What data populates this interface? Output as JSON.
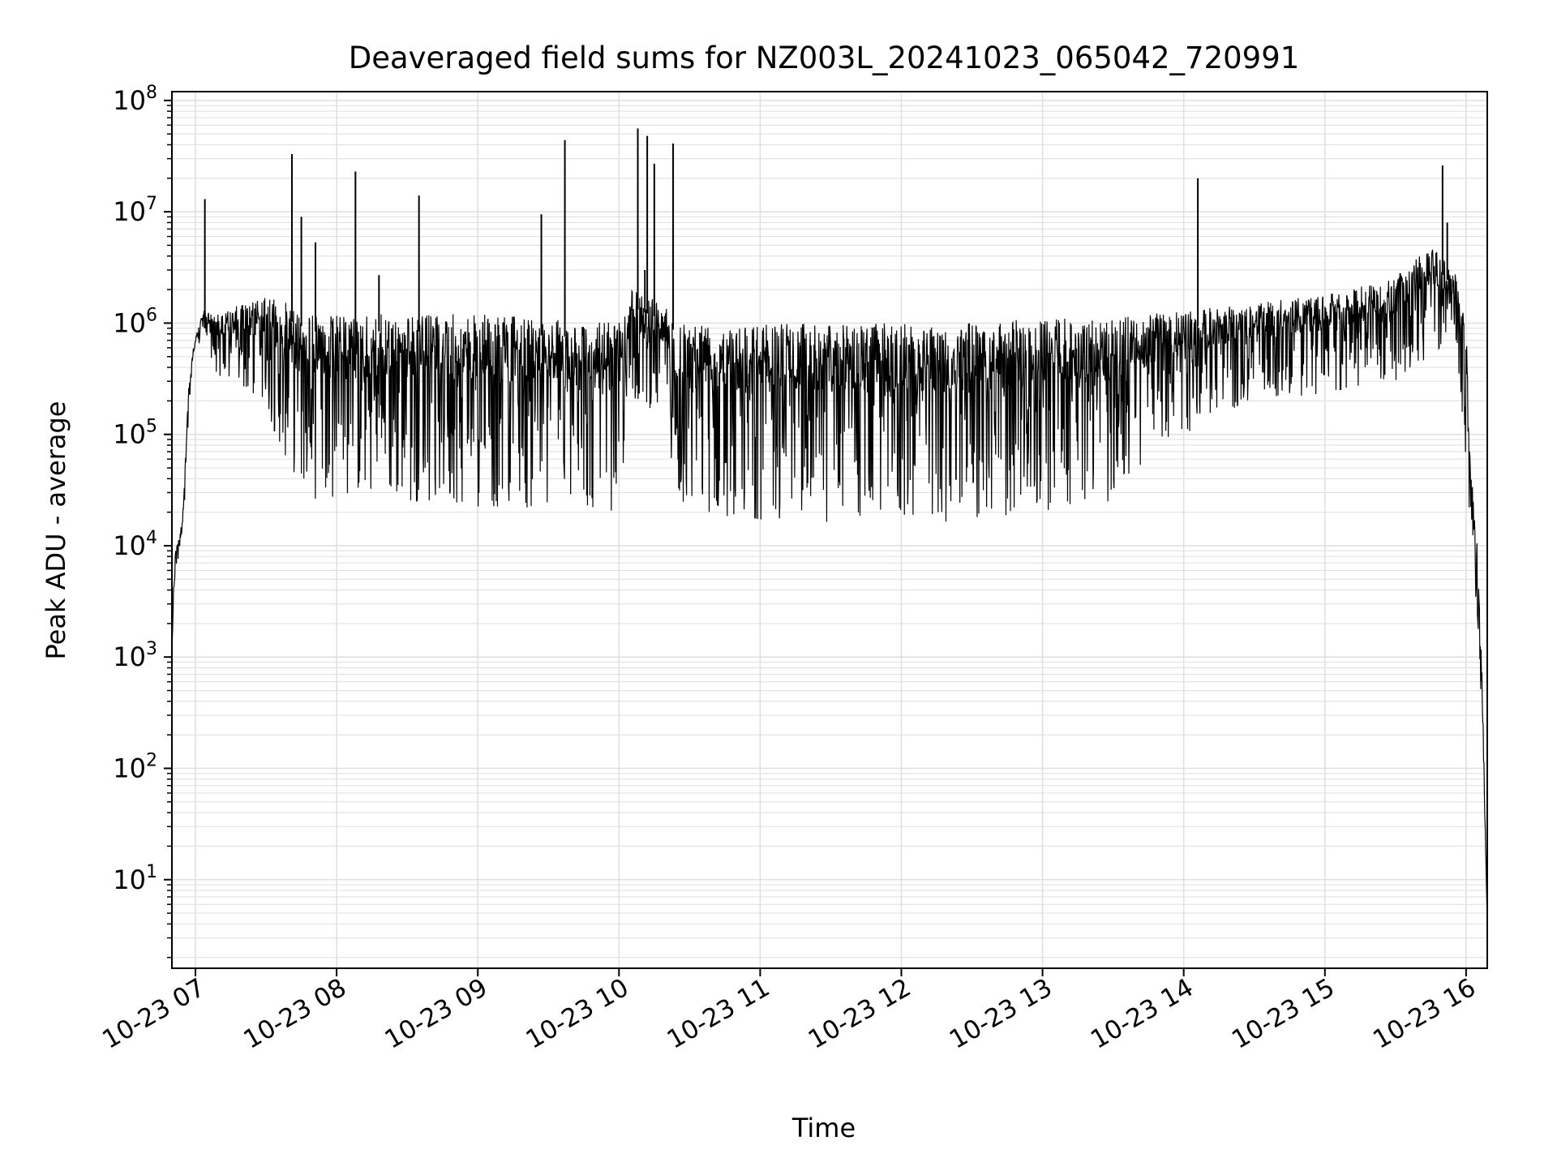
{
  "chart_data": {
    "type": "line",
    "title": "Deaveraged field sums for NZ003L_20241023_065042_720991",
    "xlabel": "Time",
    "ylabel": "Peak ADU - average",
    "yscale": "log",
    "ylim": [
      1.6,
      120000000
    ],
    "xlim": [
      "2024-10-23 06:50",
      "2024-10-23 16:09"
    ],
    "grid": true,
    "line_color": "#000000",
    "grid_color": "#e0e0e0",
    "x_ticks": [
      {
        "value": "2024-10-23 07:00",
        "label": "10-23 07"
      },
      {
        "value": "2024-10-23 08:00",
        "label": "10-23 08"
      },
      {
        "value": "2024-10-23 09:00",
        "label": "10-23 09"
      },
      {
        "value": "2024-10-23 10:00",
        "label": "10-23 10"
      },
      {
        "value": "2024-10-23 11:00",
        "label": "10-23 11"
      },
      {
        "value": "2024-10-23 12:00",
        "label": "10-23 12"
      },
      {
        "value": "2024-10-23 13:00",
        "label": "10-23 13"
      },
      {
        "value": "2024-10-23 14:00",
        "label": "10-23 14"
      },
      {
        "value": "2024-10-23 15:00",
        "label": "10-23 15"
      },
      {
        "value": "2024-10-23 16:00",
        "label": "10-23 16"
      }
    ],
    "y_ticks": [
      {
        "value": 10,
        "base": "10",
        "exp": "1"
      },
      {
        "value": 100,
        "base": "10",
        "exp": "2"
      },
      {
        "value": 1000,
        "base": "10",
        "exp": "3"
      },
      {
        "value": 10000,
        "base": "10",
        "exp": "4"
      },
      {
        "value": 100000,
        "base": "10",
        "exp": "5"
      },
      {
        "value": 1000000,
        "base": "10",
        "exp": "6"
      },
      {
        "value": 10000000,
        "base": "10",
        "exp": "7"
      },
      {
        "value": 100000000,
        "base": "10",
        "exp": "8"
      }
    ],
    "series": [
      {
        "envelope": [
          {
            "x": "2024-10-23 06:50",
            "top": 1000,
            "bottom": 1000
          },
          {
            "x": "2024-10-23 06:51",
            "top": 9000,
            "bottom": 4000
          },
          {
            "x": "2024-10-23 06:53",
            "top": 12000,
            "bottom": 8000
          },
          {
            "x": "2024-10-23 06:55",
            "top": 25000,
            "bottom": 18000
          },
          {
            "x": "2024-10-23 06:57",
            "top": 300000,
            "bottom": 100000
          },
          {
            "x": "2024-10-23 06:59",
            "top": 600000,
            "bottom": 400000
          },
          {
            "x": "2024-10-23 07:03",
            "top": 1300000,
            "bottom": 800000
          },
          {
            "x": "2024-10-23 07:10",
            "top": 1200000,
            "bottom": 300000
          },
          {
            "x": "2024-10-23 07:20",
            "top": 1500000,
            "bottom": 250000
          },
          {
            "x": "2024-10-23 07:30",
            "top": 1700000,
            "bottom": 150000
          },
          {
            "x": "2024-10-23 07:40",
            "top": 1500000,
            "bottom": 50000
          },
          {
            "x": "2024-10-23 07:50",
            "top": 1200000,
            "bottom": 25000
          },
          {
            "x": "2024-10-23 08:00",
            "top": 1200000,
            "bottom": 28000
          },
          {
            "x": "2024-10-23 08:30",
            "top": 1200000,
            "bottom": 25000
          },
          {
            "x": "2024-10-23 09:00",
            "top": 1200000,
            "bottom": 22000
          },
          {
            "x": "2024-10-23 09:30",
            "top": 1100000,
            "bottom": 20000
          },
          {
            "x": "2024-10-23 10:00",
            "top": 1000000,
            "bottom": 20000
          },
          {
            "x": "2024-10-23 10:05",
            "top": 2000000,
            "bottom": 200000
          },
          {
            "x": "2024-10-23 10:20",
            "top": 1500000,
            "bottom": 150000
          },
          {
            "x": "2024-10-23 10:25",
            "top": 1100000,
            "bottom": 20000
          },
          {
            "x": "2024-10-23 11:00",
            "top": 1000000,
            "bottom": 17000
          },
          {
            "x": "2024-10-23 11:30",
            "top": 1000000,
            "bottom": 16000
          },
          {
            "x": "2024-10-23 12:00",
            "top": 1000000,
            "bottom": 17000
          },
          {
            "x": "2024-10-23 12:30",
            "top": 1000000,
            "bottom": 16000
          },
          {
            "x": "2024-10-23 13:00",
            "top": 1100000,
            "bottom": 20000
          },
          {
            "x": "2024-10-23 13:30",
            "top": 1100000,
            "bottom": 25000
          },
          {
            "x": "2024-10-23 13:45",
            "top": 1200000,
            "bottom": 60000
          },
          {
            "x": "2024-10-23 14:00",
            "top": 1300000,
            "bottom": 100000
          },
          {
            "x": "2024-10-23 14:30",
            "top": 1500000,
            "bottom": 200000
          },
          {
            "x": "2024-10-23 15:00",
            "top": 1800000,
            "bottom": 200000
          },
          {
            "x": "2024-10-23 15:30",
            "top": 2500000,
            "bottom": 300000
          },
          {
            "x": "2024-10-23 15:45",
            "top": 5000000,
            "bottom": 500000
          },
          {
            "x": "2024-10-23 15:55",
            "top": 3000000,
            "bottom": 700000
          },
          {
            "x": "2024-10-23 16:00",
            "top": 1000000,
            "bottom": 60000
          },
          {
            "x": "2024-10-23 16:02",
            "top": 50000,
            "bottom": 10000
          },
          {
            "x": "2024-10-23 16:05",
            "top": 10000,
            "bottom": 2000
          },
          {
            "x": "2024-10-23 16:07",
            "top": 500,
            "bottom": 100
          },
          {
            "x": "2024-10-23 16:09",
            "top": 4,
            "bottom": 4
          }
        ],
        "spikes": [
          {
            "x": "2024-10-23 07:04",
            "y": 13000000
          },
          {
            "x": "2024-10-23 07:41",
            "y": 33000000
          },
          {
            "x": "2024-10-23 07:45",
            "y": 9000000
          },
          {
            "x": "2024-10-23 07:51",
            "y": 5300000
          },
          {
            "x": "2024-10-23 08:08",
            "y": 23000000
          },
          {
            "x": "2024-10-23 08:18",
            "y": 2700000
          },
          {
            "x": "2024-10-23 08:35",
            "y": 14000000
          },
          {
            "x": "2024-10-23 09:27",
            "y": 9500000
          },
          {
            "x": "2024-10-23 09:37",
            "y": 44000000
          },
          {
            "x": "2024-10-23 10:08",
            "y": 56000000
          },
          {
            "x": "2024-10-23 10:11",
            "y": 3000000
          },
          {
            "x": "2024-10-23 10:12",
            "y": 48000000
          },
          {
            "x": "2024-10-23 10:15",
            "y": 27000000
          },
          {
            "x": "2024-10-23 10:23",
            "y": 41000000
          },
          {
            "x": "2024-10-23 14:06",
            "y": 20000000
          },
          {
            "x": "2024-10-23 15:32",
            "y": 2800000
          },
          {
            "x": "2024-10-23 15:50",
            "y": 26000000
          },
          {
            "x": "2024-10-23 15:52",
            "y": 8000000
          }
        ]
      }
    ]
  }
}
